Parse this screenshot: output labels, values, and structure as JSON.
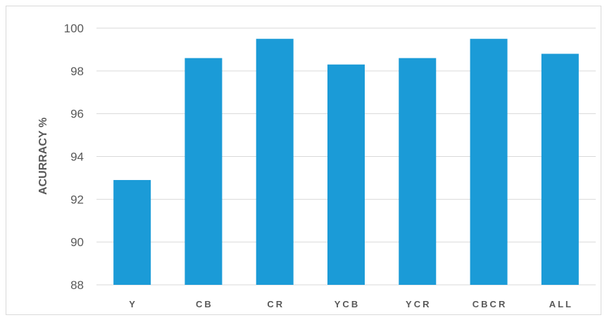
{
  "chart_data": {
    "type": "bar",
    "categories": [
      "Y",
      "CB",
      "CR",
      "YCB",
      "YCR",
      "CBCR",
      "ALL"
    ],
    "values": [
      92.9,
      98.6,
      99.5,
      98.3,
      98.6,
      99.5,
      98.8
    ],
    "title": "",
    "xlabel": "",
    "ylabel": "ACURRACY %",
    "ylim": [
      88,
      100
    ],
    "yticks": [
      88,
      90,
      92,
      94,
      96,
      98,
      100
    ],
    "grid": true,
    "legend": "none",
    "bar_color": "#1b9bd7",
    "grid_color": "#d9d9d9",
    "text_color": "#595959"
  }
}
